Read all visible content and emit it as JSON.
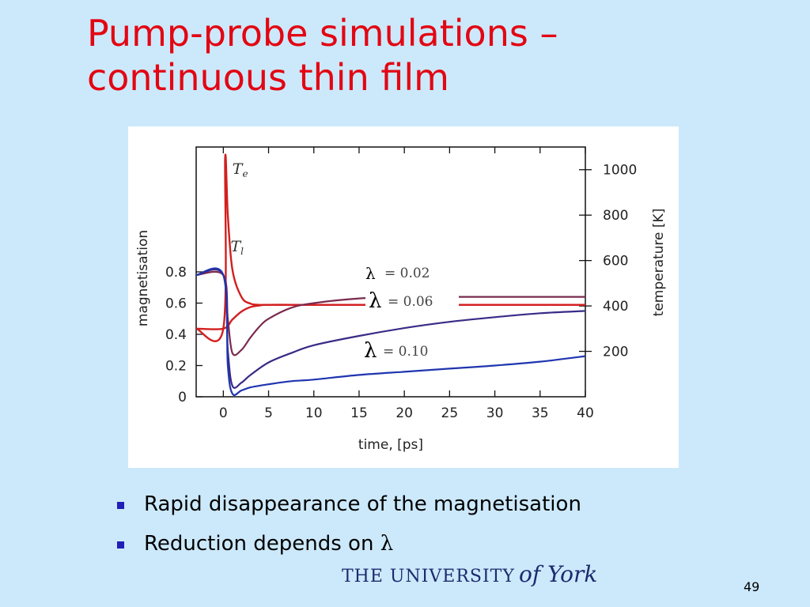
{
  "slide": {
    "title_line1": "Pump-probe simulations –",
    "title_line2": "continuous thin film",
    "page_number": "49",
    "logo_text": "The University of York",
    "logo_caps": "THE UNIVERSITY",
    "logo_script": "of York"
  },
  "bullets": [
    {
      "text": "Rapid disappearance of the magnetisation"
    },
    {
      "text": "Reduction depends on ",
      "symbol": "λ"
    }
  ],
  "colors": {
    "title": "#e30613",
    "background": "#cce9fb",
    "bullet": "#1f1fb8",
    "curve_red": "#d21f1f",
    "curve_blue_dark": "#1f2a9c"
  },
  "chart_data": {
    "type": "line",
    "xlabel": "time, [ps]",
    "ylabel": "magnetisation",
    "y2label": "temperature [K]",
    "xlim": [
      -3,
      40
    ],
    "ylim": [
      0,
      1.6
    ],
    "y2lim": [
      0,
      1100
    ],
    "xticks": [
      0,
      5,
      10,
      15,
      20,
      25,
      30,
      35,
      40
    ],
    "yticks": [
      "0",
      "0.2",
      "0.4",
      "0.6",
      "0.8"
    ],
    "y2ticks": [
      "200",
      "400",
      "600",
      "800",
      "1000"
    ],
    "grid": false,
    "temperature_series": [
      {
        "name": "T_e",
        "label_main": "T",
        "label_sub": "e",
        "color": "#d21f1f",
        "x": [
          -3,
          0,
          0.2,
          0.5,
          1,
          2,
          3,
          4,
          5,
          10,
          20,
          30,
          40
        ],
        "y": [
          300,
          300,
          1050,
          800,
          560,
          440,
          410,
          405,
          405,
          405,
          405,
          405,
          405
        ]
      },
      {
        "name": "T_l",
        "label_main": "T",
        "label_sub": "l",
        "color": "#d21f1f",
        "x": [
          -3,
          0,
          1,
          2,
          3,
          4,
          5,
          10,
          20,
          30,
          40
        ],
        "y": [
          300,
          300,
          340,
          375,
          395,
          402,
          405,
          405,
          405,
          405,
          405
        ]
      }
    ],
    "magnetisation_series": [
      {
        "name": "λ = 0.02",
        "lambda": "λ",
        "value_text": "= 0.02",
        "color": "#7a2a4e",
        "x": [
          -3,
          0,
          0.5,
          1,
          2,
          3,
          4,
          5,
          7.5,
          10,
          15,
          20,
          25,
          30,
          40
        ],
        "y": [
          0.78,
          0.78,
          0.5,
          0.28,
          0.3,
          0.38,
          0.45,
          0.5,
          0.57,
          0.6,
          0.63,
          0.64,
          0.64,
          0.64,
          0.64
        ]
      },
      {
        "name": "λ = 0.06",
        "lambda": "λ",
        "value_text": "= 0.06",
        "color": "#3a2a86",
        "x": [
          -3,
          0,
          0.5,
          1,
          2,
          3,
          5,
          7.5,
          10,
          15,
          20,
          25,
          30,
          35,
          40
        ],
        "y": [
          0.78,
          0.78,
          0.3,
          0.07,
          0.09,
          0.14,
          0.22,
          0.28,
          0.33,
          0.39,
          0.44,
          0.48,
          0.51,
          0.535,
          0.55
        ]
      },
      {
        "name": "λ = 0.10",
        "lambda": "λ",
        "value_text": "= 0.10",
        "color": "#1f35b0",
        "x": [
          -3,
          0,
          0.5,
          1,
          2,
          3,
          5,
          7.5,
          10,
          15,
          20,
          25,
          30,
          35,
          40
        ],
        "y": [
          0.78,
          0.78,
          0.2,
          0.02,
          0.04,
          0.06,
          0.08,
          0.1,
          0.11,
          0.14,
          0.16,
          0.18,
          0.2,
          0.225,
          0.26
        ]
      }
    ]
  }
}
